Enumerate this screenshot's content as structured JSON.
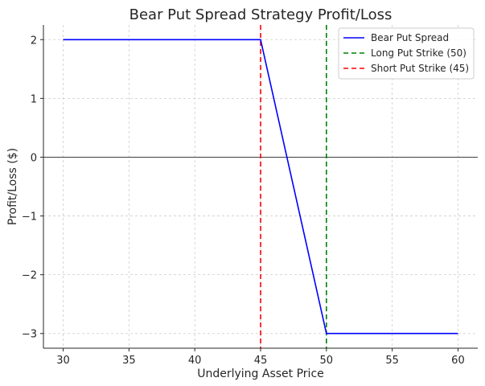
{
  "chart_data": {
    "type": "line",
    "title": "Bear Put Spread Strategy Profit/Loss",
    "xlabel": "Underlying Asset Price",
    "ylabel": "Profit/Loss ($)",
    "xlim": [
      28.5,
      61.5
    ],
    "ylim": [
      -3.25,
      2.25
    ],
    "xticks": [
      30,
      35,
      40,
      45,
      50,
      55,
      60
    ],
    "yticks": [
      2,
      1,
      0,
      -1,
      -2,
      -3
    ],
    "xtick_labels": [
      "30",
      "35",
      "40",
      "45",
      "50",
      "55",
      "60"
    ],
    "ytick_labels": [
      "2",
      "1",
      "0",
      "−1",
      "−2",
      "−3"
    ],
    "grid": true,
    "zero_line": true,
    "legend_position": "top-right",
    "series": [
      {
        "name": "Bear Put Spread",
        "color": "#0000ff",
        "style": "solid",
        "x": [
          30,
          45,
          50,
          60
        ],
        "y": [
          2,
          2,
          -3,
          -3
        ]
      }
    ],
    "vlines": [
      {
        "name": "Long Put Strike (50)",
        "x": 50,
        "color": "#008000",
        "style": "dashed"
      },
      {
        "name": "Short Put Strike (45)",
        "x": 45,
        "color": "#ff0000",
        "style": "dashed"
      }
    ],
    "legend": [
      "Bear Put Spread",
      "Long Put Strike (50)",
      "Short Put Strike (45)"
    ]
  }
}
